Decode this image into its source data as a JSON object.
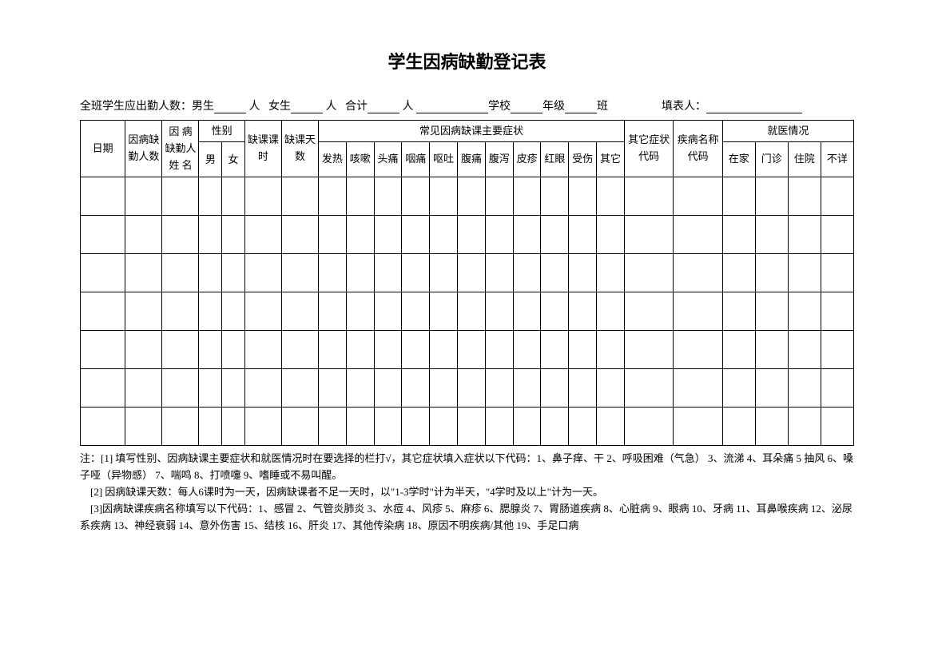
{
  "title": "学生因病缺勤登记表",
  "header": {
    "prefix": "全班学生应出勤人数：男生",
    "unit_person": "人",
    "female_label": "女生",
    "total_label": "合计",
    "school_label": "学校",
    "grade_label": "年级",
    "class_label": "班",
    "filler_label": "填表人："
  },
  "table": {
    "columns": {
      "date": "日期",
      "absent_count": "因病缺勤人数",
      "absent_name": "因 病缺勤人姓 名",
      "gender": "性别",
      "gender_male": "男",
      "gender_female": "女",
      "absent_hours": "缺课课时",
      "absent_days": "缺课天数",
      "symptoms_header": "常见因病缺课主要症状",
      "symptom_fever": "发热",
      "symptom_cough": "咳嗽",
      "symptom_headache": "头痛",
      "symptom_sorethroat": "咽痛",
      "symptom_vomit": "呕吐",
      "symptom_stomachache": "腹痛",
      "symptom_diarrhea": "腹泻",
      "symptom_rash": "皮疹",
      "symptom_redeye": "红眼",
      "symptom_injury": "受伤",
      "symptom_other": "其它",
      "other_symptom_code": "其它症状代码",
      "disease_name_code": "疾病名称代码",
      "medical_header": "就医情况",
      "medical_home": "在家",
      "medical_outpatient": "门诊",
      "medical_hospital": "住院",
      "medical_unknown": "不详"
    },
    "data_row_count": 7
  },
  "notes": {
    "line1": "注：[1] 填写性别、因病缺课主要症状和就医情况时在要选择的栏打√，其它症状填入症状以下代码：1、鼻子痒、干 2、呼吸困难（气急） 3、流涕 4、耳朵痛 5 抽风 6、嗓子哑（异物感） 7、喘鸣 8、打喷嚏 9、嗜睡或不易叫醒。",
    "line2": "[2] 因病缺课天数：每人6课时为一天，因病缺课者不足一天时，以\"1-3学时\"计为半天，\"4学时及以上\"计为一天。",
    "line3": "[3]因病缺课疾病名称填写以下代码：1、感冒  2、气管炎肺炎  3、水痘  4、风疹   5、麻疹  6、腮腺炎  7、胃肠道疾病  8、心脏病  9、眼病  10、牙病  11、耳鼻喉疾病   12、泌尿系疾病  13、神经衰弱  14、意外伤害  15、结核  16、肝炎  17、其他传染病  18、原因不明疾病/其他 19、手足口病"
  }
}
